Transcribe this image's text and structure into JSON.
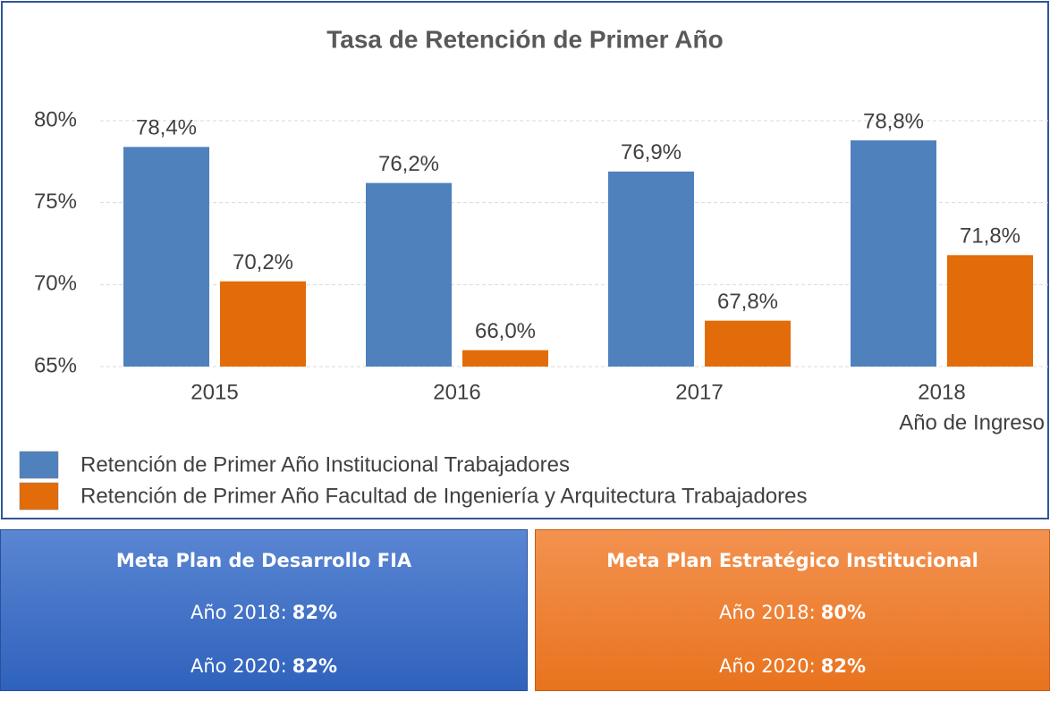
{
  "chart_data": {
    "type": "bar",
    "title": "Tasa de Retención de Primer Año",
    "x_label": "Año de Ingreso",
    "categories": [
      "2015",
      "2016",
      "2017",
      "2018"
    ],
    "series": [
      {
        "name": "Retención de Primer Año Institucional Trabajadores",
        "color": "#4f81bd",
        "values": [
          78.4,
          76.2,
          76.9,
          78.8
        ],
        "value_labels": [
          "78,4%",
          "76,2%",
          "76,9%",
          "78,8%"
        ]
      },
      {
        "name": "Retención de Primer Año Facultad de Ingeniería y Arquitectura Trabajadores",
        "color": "#e36c0a",
        "values": [
          70.2,
          66.0,
          67.8,
          71.8
        ],
        "value_labels": [
          "70,2%",
          "66,0%",
          "67,8%",
          "71,8%"
        ]
      }
    ],
    "ylim": [
      65,
      80
    ],
    "yticks": [
      {
        "value": 65,
        "label": "65%"
      },
      {
        "value": 70,
        "label": "70%"
      },
      {
        "value": 75,
        "label": "75%"
      },
      {
        "value": 80,
        "label": "80%"
      }
    ],
    "grid": true
  },
  "goals": [
    {
      "title": "Meta Plan de Desarrollo FIA",
      "lines": [
        {
          "label": "Año 2018:",
          "value": "82%"
        },
        {
          "label": "Año 2020:",
          "value": "82%"
        }
      ]
    },
    {
      "title": "Meta Plan Estratégico Institucional",
      "lines": [
        {
          "label": "Año 2018:",
          "value": "80%"
        },
        {
          "label": "Año 2020:",
          "value": "82%"
        }
      ]
    }
  ]
}
